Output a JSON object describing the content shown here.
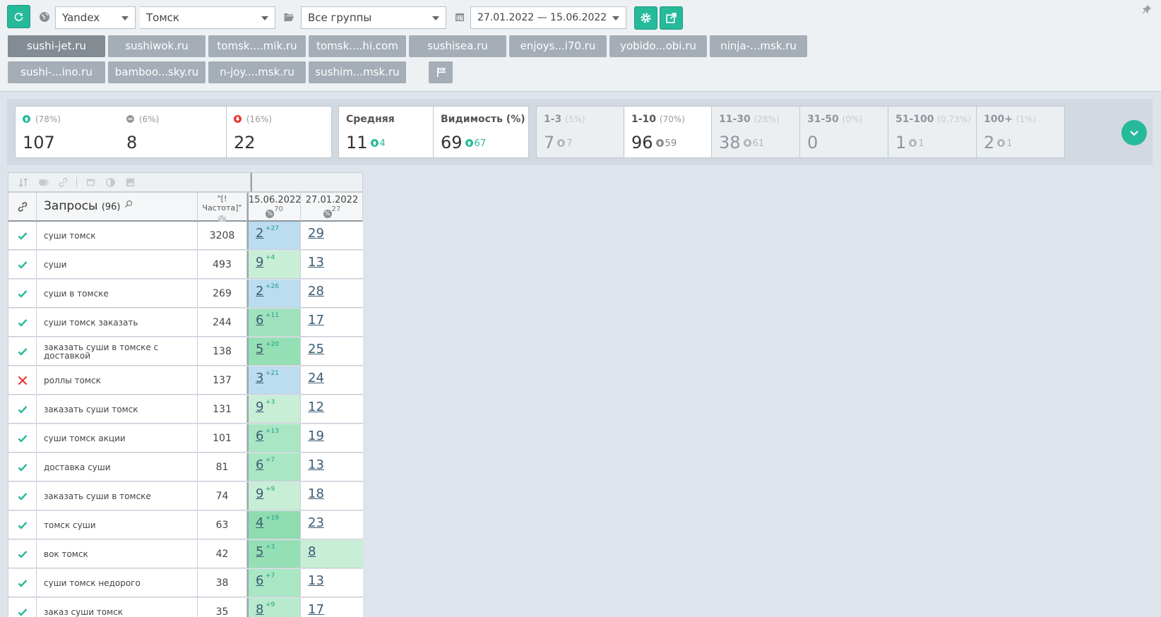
{
  "toolbar": {
    "search_engine": "Yandex",
    "region": "Томск",
    "group": "Все группы",
    "date_range": "27.01.2022 — 15.06.2022"
  },
  "sites": {
    "row1": [
      "sushi-jet.ru",
      "sushiwok.ru",
      "tomsk....mik.ru",
      "tomsk....hi.com",
      "sushisea.ru",
      "enjoys...i70.ru",
      "yobido...obi.ru",
      "ninja-...msk.ru"
    ],
    "row2": [
      "sushi-...ino.ru",
      "bamboo...sky.ru",
      "n-joy....msk.ru",
      "sushim...msk.ru"
    ],
    "active": "sushi-jet.ru"
  },
  "stats": {
    "up": {
      "pct": "(78%)",
      "value": "107"
    },
    "same": {
      "pct": "(6%)",
      "value": "8"
    },
    "down": {
      "pct": "(16%)",
      "value": "22"
    },
    "avg": {
      "label": "Средняя",
      "value": "11",
      "delta": "4"
    },
    "visibility": {
      "label": "Видимость (%)",
      "value": "69",
      "delta": "67"
    },
    "r1_3": {
      "label": "1-3",
      "pct": "(5%)",
      "value": "7",
      "delta": "7"
    },
    "r1_10": {
      "label": "1-10",
      "pct": "(70%)",
      "value": "96",
      "delta": "59"
    },
    "r11_30": {
      "label": "11-30",
      "pct": "(28%)",
      "value": "38",
      "delta": "61"
    },
    "r31_50": {
      "label": "31-50",
      "pct": "(0%)",
      "value": "0"
    },
    "r51_100": {
      "label": "51-100",
      "pct": "(0.73%)",
      "value": "1",
      "delta": "1"
    },
    "r100p": {
      "label": "100+",
      "pct": "(1%)",
      "value": "2",
      "delta": "1"
    }
  },
  "table": {
    "query_header": "Запросы",
    "query_count": "(96)",
    "freq_header": "\"[!Частота]\"",
    "date1": "15.06.2022",
    "date1_pct": "70",
    "date2": "27.01.2022",
    "date2_pct": "27",
    "pct_symbol": "%",
    "rows": [
      {
        "ok": true,
        "query": "суши томск",
        "freq": "3208",
        "pos": "2",
        "delta": "+27",
        "prev": "29",
        "bg": "#bcdcef",
        "bg2": "#ffffff"
      },
      {
        "ok": true,
        "query": "суши",
        "freq": "493",
        "pos": "9",
        "delta": "+4",
        "prev": "13",
        "bg": "#c8eed6",
        "bg2": "#ffffff"
      },
      {
        "ok": true,
        "query": "суши в томске",
        "freq": "269",
        "pos": "2",
        "delta": "+26",
        "prev": "28",
        "bg": "#bcdcef",
        "bg2": "#ffffff"
      },
      {
        "ok": true,
        "query": "суши томск заказать",
        "freq": "244",
        "pos": "6",
        "delta": "+11",
        "prev": "17",
        "bg": "#9fe2bd",
        "bg2": "#ffffff"
      },
      {
        "ok": true,
        "query": "заказать суши в томске с доставкой",
        "freq": "138",
        "pos": "5",
        "delta": "+20",
        "prev": "25",
        "bg": "#95dfb5",
        "bg2": "#ffffff"
      },
      {
        "ok": false,
        "query": "роллы томск",
        "freq": "137",
        "pos": "3",
        "delta": "+21",
        "prev": "24",
        "bg": "#bcdcef",
        "bg2": "#ffffff"
      },
      {
        "ok": true,
        "query": "заказать суши томск",
        "freq": "131",
        "pos": "9",
        "delta": "+3",
        "prev": "12",
        "bg": "#c8eed6",
        "bg2": "#ffffff"
      },
      {
        "ok": true,
        "query": "суши томск акции",
        "freq": "101",
        "pos": "6",
        "delta": "+13",
        "prev": "19",
        "bg": "#a9e6c4",
        "bg2": "#ffffff"
      },
      {
        "ok": true,
        "query": "доставка суши",
        "freq": "81",
        "pos": "6",
        "delta": "+7",
        "prev": "13",
        "bg": "#a9e6c4",
        "bg2": "#ffffff"
      },
      {
        "ok": true,
        "query": "заказать суши в томске",
        "freq": "74",
        "pos": "9",
        "delta": "+9",
        "prev": "18",
        "bg": "#c8eed6",
        "bg2": "#ffffff"
      },
      {
        "ok": true,
        "query": "томск суши",
        "freq": "63",
        "pos": "4",
        "delta": "+19",
        "prev": "23",
        "bg": "#8fdcb1",
        "bg2": "#ffffff"
      },
      {
        "ok": true,
        "query": "вок томск",
        "freq": "42",
        "pos": "5",
        "delta": "+3",
        "prev": "8",
        "bg": "#95dfb5",
        "bg2": "#c8eed6"
      },
      {
        "ok": true,
        "query": "суши томск недорого",
        "freq": "38",
        "pos": "6",
        "delta": "+7",
        "prev": "13",
        "bg": "#a9e6c4",
        "bg2": "#ffffff"
      },
      {
        "ok": true,
        "query": "заказ суши томск",
        "freq": "35",
        "pos": "8",
        "delta": "+9",
        "prev": "17",
        "bg": "#b8eacd",
        "bg2": "#ffffff"
      }
    ]
  },
  "colors": {
    "accent": "#26b99a",
    "error": "#e53935",
    "link": "#3b5c74"
  }
}
